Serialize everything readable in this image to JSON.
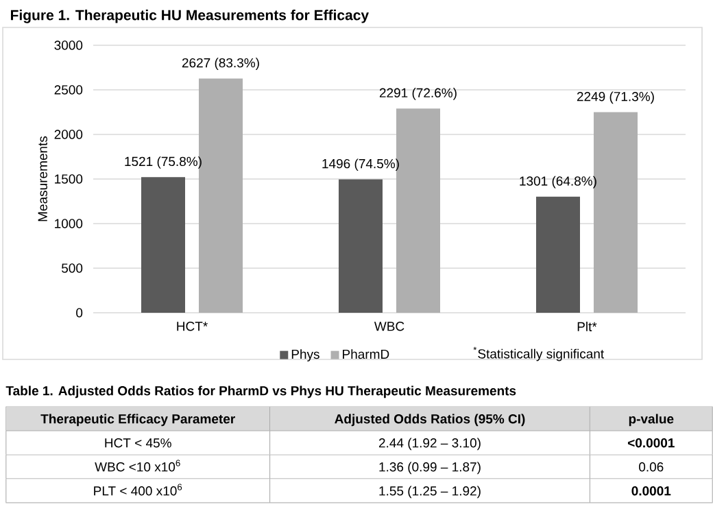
{
  "chart_data": [
    {
      "type": "bar",
      "title": "Figure 1. Therapeutic HU Measurements for Efficacy",
      "ylabel": "Measurements",
      "categories": [
        "HCT*",
        "WBC",
        "Plt*"
      ],
      "series": [
        {
          "name": "Phys",
          "color": "#5a5a5a",
          "values": [
            1521,
            1496,
            1301
          ],
          "value_labels": [
            "1521 (75.8%)",
            "1496 (74.5%)",
            "1301 (64.8%)"
          ]
        },
        {
          "name": "PharmD",
          "color": "#afafaf",
          "values": [
            2627,
            2291,
            2249
          ],
          "value_labels": [
            "2627 (83.3%)",
            "2291 (72.6%)",
            "2249 (71.3%)"
          ]
        }
      ],
      "ylim": [
        0,
        3000
      ],
      "yticks": [
        0,
        500,
        1000,
        1500,
        2000,
        2500,
        3000
      ],
      "grid": "y",
      "legend": "bottom",
      "annotations": [
        "$^{*}$Statistically significant"
      ]
    },
    {
      "type": "other",
      "title": "Table 1.  Adjusted Odds Ratios for PharmD vs Phys HU Therapeutic Measurements",
      "annotations": [
        "Therapeutic Efficacy Parameter",
        "Adjusted Odds Ratios (95% CI)",
        "p-value",
        "HCT < 45%",
        "2.44 (1.92 – 3.10)",
        "**<0.0001**",
        "WBC <10 x10$^{6}$",
        "1.36 (0.99 – 1.87)",
        "0.06",
        "PLT < 400 x10$^{6}$",
        "1.55 (1.25 – 1.92)",
        "**0.0001**"
      ]
    }
  ]
}
